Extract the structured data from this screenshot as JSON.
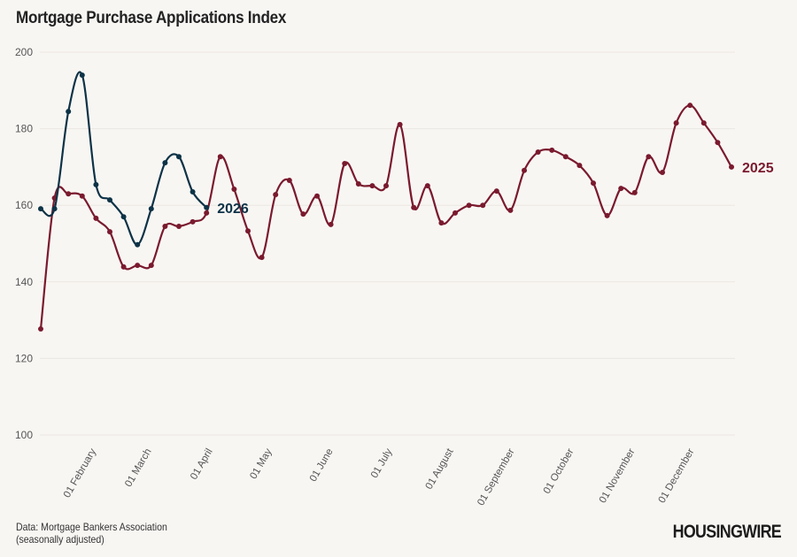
{
  "title": "Mortgage Purchase Applications Index",
  "source_line1": "Data: Mortgage Bankers Association",
  "source_line2": "(seasonally adjusted)",
  "logo_text": "HOUSINGWIRE",
  "chart_data": {
    "type": "line",
    "title": "Mortgage Purchase Applications Index",
    "xlabel": "",
    "ylabel": "",
    "ylim": [
      100,
      200
    ],
    "yticks": [
      100,
      120,
      140,
      160,
      180,
      200
    ],
    "xticks": [
      {
        "date": "02-01",
        "label": "01 February"
      },
      {
        "date": "03-01",
        "label": "01 March"
      },
      {
        "date": "04-01",
        "label": "01 April"
      },
      {
        "date": "05-01",
        "label": "01 May"
      },
      {
        "date": "06-01",
        "label": "01 June"
      },
      {
        "date": "07-01",
        "label": "01 July"
      },
      {
        "date": "08-01",
        "label": "01 August"
      },
      {
        "date": "09-01",
        "label": "01 September"
      },
      {
        "date": "10-01",
        "label": "01 October"
      },
      {
        "date": "11-01",
        "label": "01 November"
      },
      {
        "date": "12-01",
        "label": "01 December"
      }
    ],
    "grid": "horizontal",
    "series": [
      {
        "name": "2025",
        "color": "#7a1a2e",
        "x": [
          "01-03",
          "01-10",
          "01-17",
          "01-24",
          "01-31",
          "02-07",
          "02-14",
          "02-21",
          "02-28",
          "03-07",
          "03-14",
          "03-21",
          "03-28",
          "04-04",
          "04-11",
          "04-18",
          "04-25",
          "05-02",
          "05-09",
          "05-16",
          "05-23",
          "05-30",
          "06-06",
          "06-13",
          "06-20",
          "06-27",
          "07-04",
          "07-11",
          "07-18",
          "07-25",
          "08-01",
          "08-08",
          "08-15",
          "08-22",
          "08-29",
          "09-05",
          "09-12",
          "09-19",
          "09-26",
          "10-03",
          "10-10",
          "10-17",
          "10-24",
          "10-31",
          "11-07",
          "11-14",
          "11-21",
          "11-28",
          "12-05",
          "12-12",
          "12-19"
        ],
        "values": [
          127.7,
          161.9,
          163.0,
          162.4,
          156.6,
          153.1,
          143.9,
          144.3,
          144.3,
          154.5,
          154.5,
          155.7,
          158.0,
          172.7,
          164.2,
          153.3,
          146.4,
          162.8,
          166.5,
          157.7,
          162.4,
          155.0,
          170.9,
          165.6,
          165.1,
          165.1,
          181.1,
          159.4,
          165.1,
          155.4,
          158.0,
          160.0,
          160.0,
          163.7,
          158.7,
          169.1,
          173.9,
          174.4,
          172.7,
          170.4,
          165.8,
          157.3,
          164.4,
          163.3,
          172.7,
          168.6,
          181.5,
          186.1,
          181.5,
          176.4,
          170.0
        ]
      },
      {
        "name": "2026",
        "color": "#0d3347",
        "x": [
          "01-03",
          "01-10",
          "01-17",
          "01-24",
          "01-31",
          "02-07",
          "02-14",
          "02-21",
          "02-28",
          "03-07",
          "03-14",
          "03-21",
          "03-28"
        ],
        "values": [
          159.1,
          159.1,
          184.5,
          194.0,
          165.4,
          161.4,
          157.0,
          149.7,
          159.1,
          171.1,
          172.7,
          163.5,
          159.4
        ]
      }
    ]
  }
}
